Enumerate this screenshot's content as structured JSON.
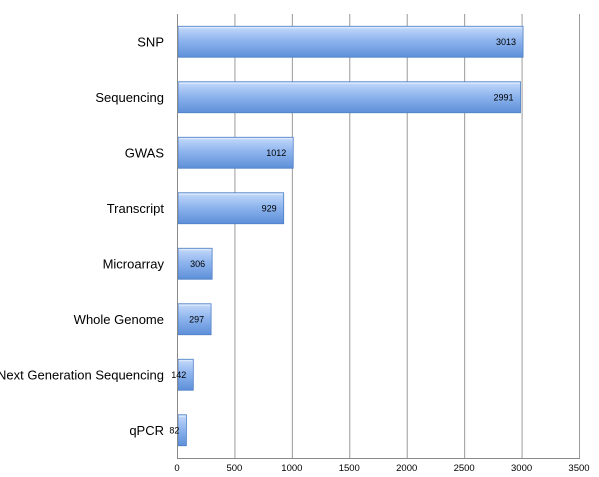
{
  "chart_data": {
    "type": "bar",
    "orientation": "horizontal",
    "categories": [
      "SNP",
      "Sequencing",
      "GWAS",
      "Transcript",
      "Microarray",
      "Whole Genome",
      "Next Generation Sequencing",
      "qPCR"
    ],
    "values": [
      3013,
      2991,
      1012,
      929,
      306,
      297,
      142,
      82
    ],
    "data_labels": [
      "3013",
      "2991",
      "1012",
      "929",
      "306",
      "297",
      "142",
      "82"
    ],
    "xlim": [
      0,
      3500
    ],
    "x_ticks": [
      0,
      500,
      1000,
      1500,
      2000,
      2500,
      3000,
      3500
    ],
    "x_tick_labels": [
      "0",
      "500",
      "1000",
      "1500",
      "2000",
      "2500",
      "3000",
      "3500"
    ],
    "grid": "vertical",
    "legend": "none",
    "title": "",
    "xlabel": "",
    "ylabel": "",
    "colors": {
      "bar_top": "#c5dafa",
      "bar_mid": "#8fb5ee",
      "bar_bottom": "#5d8fd8",
      "bar_stroke": "#4f7fc6",
      "grid": "#9a9a9a",
      "axis": "#8a8a8a"
    }
  }
}
